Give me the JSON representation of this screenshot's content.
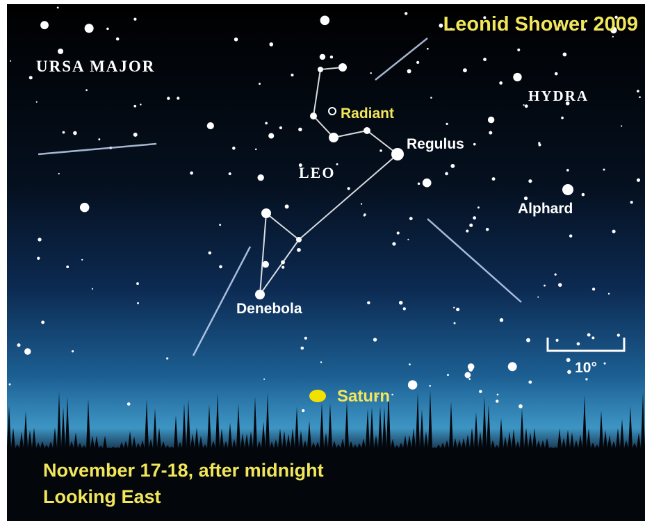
{
  "title": "Leonid Shower 2009",
  "constellations": [
    "URSA MAJOR",
    "HYDRA",
    "LEO"
  ],
  "radiant": "Radiant",
  "stars": [
    "Regulus",
    "Alphard",
    "Denebola"
  ],
  "planet": "Saturn",
  "scale": "10°",
  "footer": [
    "November 17-18, after midnight",
    "Looking East"
  ]
}
